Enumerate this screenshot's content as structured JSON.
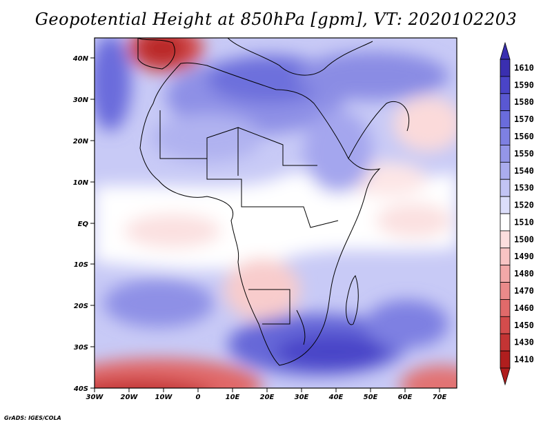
{
  "title": "Geopotential Height at 850hPa [gpm], VT: 2020102203",
  "credit": "GrADS: IGES/COLA",
  "lat_labels": [
    "40N",
    "30N",
    "20N",
    "10N",
    "EQ",
    "10S",
    "20S",
    "30S",
    "40S"
  ],
  "lon_labels": [
    "30W",
    "20W",
    "10W",
    "0",
    "10E",
    "20E",
    "30E",
    "40E",
    "50E",
    "60E",
    "70E"
  ],
  "colorbar": {
    "labels": [
      "1610",
      "1590",
      "1580",
      "1570",
      "1560",
      "1550",
      "1540",
      "1530",
      "1520",
      "1510",
      "1500",
      "1490",
      "1480",
      "1470",
      "1460",
      "1450",
      "1430",
      "1410"
    ],
    "colors": [
      "#3a2fb0",
      "#4a44c8",
      "#5a58d2",
      "#6a6cdc",
      "#7e80e2",
      "#9496e8",
      "#aaacee",
      "#c2c4f4",
      "#dcdefa",
      "#ffffff",
      "#fcdede",
      "#f8c4c4",
      "#f2a8a8",
      "#ea8a8a",
      "#e06a6a",
      "#d44c4c",
      "#c43434",
      "#b01e1e"
    ]
  }
}
